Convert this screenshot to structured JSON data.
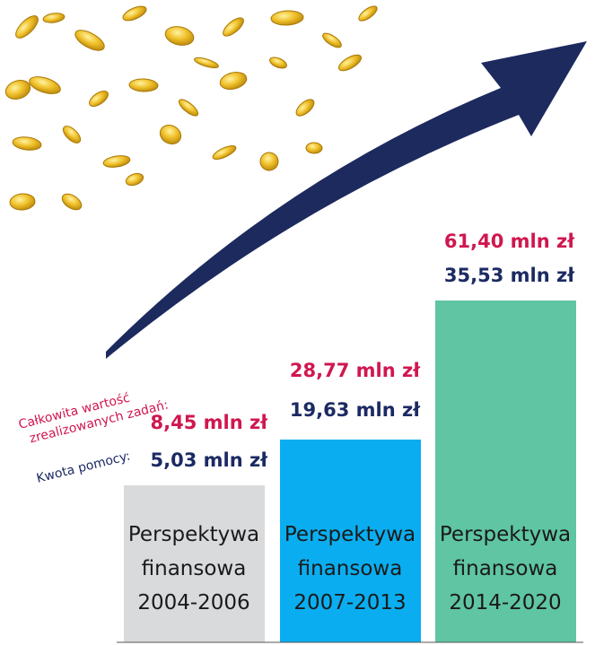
{
  "labels": {
    "total": [
      "Całkowita wartość",
      "zrealizowanych zadań:"
    ],
    "aid": "Kwota pomocy:"
  },
  "periods": [
    {
      "title": [
        "Perspektywa",
        "finansowa",
        "2004-2006"
      ],
      "total": "8,45 mln zł",
      "aid": "5,03 mln zł"
    },
    {
      "title": [
        "Perspektywa",
        "finansowa",
        "2007-2013"
      ],
      "total": "28,77 mln zł",
      "aid": "19,63 mln zł"
    },
    {
      "title": [
        "Perspektywa",
        "finansowa",
        "2014-2020"
      ],
      "total": "61,40 mln zł",
      "aid": "35,53 mln zł"
    }
  ]
}
